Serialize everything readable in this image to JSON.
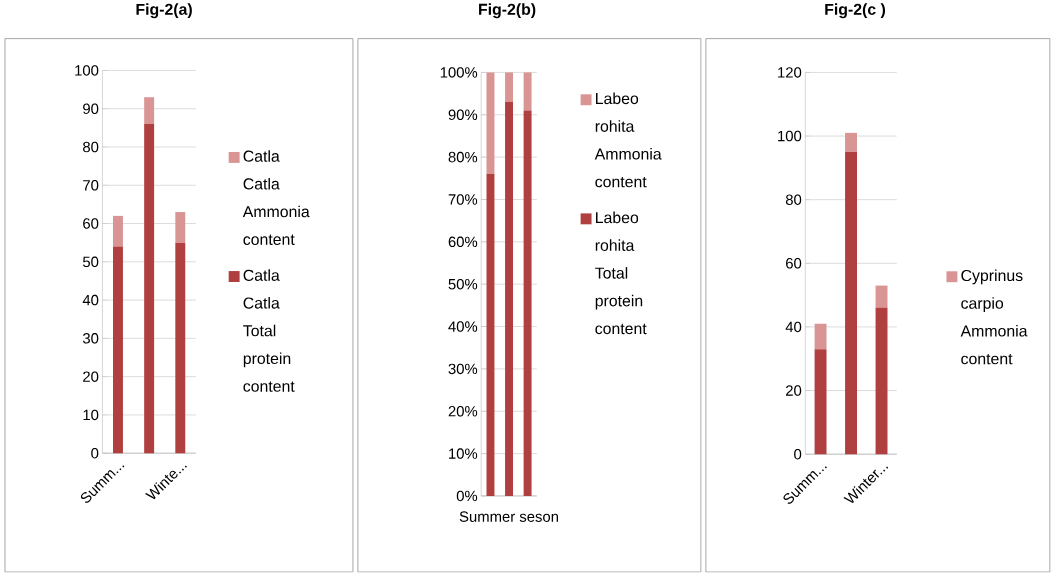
{
  "chart_data": [
    {
      "type": "bar",
      "title": "Fig-2(a)",
      "categories": [
        "Summ...",
        null,
        "Winte..."
      ],
      "stacked": true,
      "series": [
        {
          "name": "Catla Catla Total protein content",
          "color": "#b0403f",
          "values": [
            54,
            86,
            55
          ]
        },
        {
          "name": "Catla Catla Ammonia content",
          "color": "#d99594",
          "values": [
            8,
            7,
            8
          ]
        }
      ],
      "ylim": [
        0,
        100
      ],
      "yticks": [
        0,
        10,
        20,
        30,
        40,
        50,
        60,
        70,
        80,
        90,
        100
      ],
      "grid": "y",
      "legend": "right"
    },
    {
      "type": "bar",
      "title": "Fig-2(b)",
      "categories": [
        null,
        "Summer seson",
        null
      ],
      "stacked": true,
      "series": [
        {
          "name": "Labeo rohita Total protein content",
          "color": "#b0403f",
          "values": [
            76,
            93,
            91
          ]
        },
        {
          "name": "Labeo rohita Ammonia content",
          "color": "#d99594",
          "values": [
            24,
            7,
            9
          ]
        }
      ],
      "ylim": [
        0,
        100
      ],
      "yticks": [
        {
          "value": 0,
          "label": "0%"
        },
        {
          "value": 10,
          "label": "10%"
        },
        {
          "value": 20,
          "label": "20%"
        },
        {
          "value": 30,
          "label": "30%"
        },
        {
          "value": 40,
          "label": "40%"
        },
        {
          "value": 50,
          "label": "50%"
        },
        {
          "value": 60,
          "label": "60%"
        },
        {
          "value": 70,
          "label": "70%"
        },
        {
          "value": 80,
          "label": "80%"
        },
        {
          "value": 90,
          "label": "90%"
        },
        {
          "value": 100,
          "label": "100%"
        }
      ],
      "grid": "y",
      "legend": "right"
    },
    {
      "type": "bar",
      "title": "Fig-2(c )",
      "categories": [
        "Summ...",
        null,
        "Winter..."
      ],
      "stacked": true,
      "series": [
        {
          "color": "#b0403f",
          "values": [
            33,
            95,
            46
          ]
        },
        {
          "name": "Cyprinus carpio Ammonia content",
          "color": "#d99594",
          "values": [
            8,
            6,
            7
          ]
        }
      ],
      "ylim": [
        0,
        120
      ],
      "yticks": [
        0,
        20,
        40,
        60,
        80,
        100,
        120
      ],
      "grid": "y",
      "legend": "right"
    }
  ]
}
